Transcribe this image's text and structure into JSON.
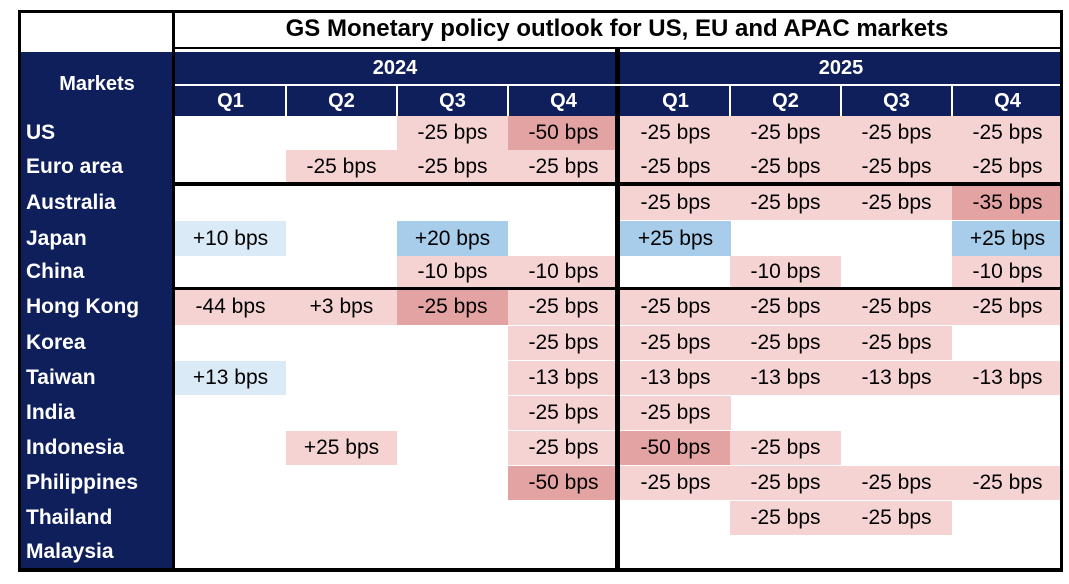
{
  "chart_data": {
    "type": "table",
    "title": "GS Monetary policy outlook for US, EU and APAC markets",
    "row_header": "Markets",
    "years": [
      {
        "label": "2024",
        "quarters": [
          "Q1",
          "Q2",
          "Q3",
          "Q4"
        ]
      },
      {
        "label": "2025",
        "quarters": [
          "Q1",
          "Q2",
          "Q3",
          "Q4"
        ]
      }
    ],
    "colors": {
      "navy": "#0f1f5c",
      "cut_light": "#f5d3d3",
      "cut_strong": "#e4a3a3",
      "hike_light": "#dbeaf7",
      "hike_strong": "#a7cdea"
    },
    "rows": [
      {
        "market": "US",
        "cells": [
          {
            "text": "",
            "shade": "none"
          },
          {
            "text": "",
            "shade": "none"
          },
          {
            "text": "-25 bps",
            "shade": "cut_light"
          },
          {
            "text": "-50 bps",
            "shade": "cut_strong"
          },
          {
            "text": "-25 bps",
            "shade": "cut_light"
          },
          {
            "text": "-25 bps",
            "shade": "cut_light"
          },
          {
            "text": "-25 bps",
            "shade": "cut_light"
          },
          {
            "text": "-25 bps",
            "shade": "cut_light"
          }
        ]
      },
      {
        "market": "Euro area",
        "cells": [
          {
            "text": "",
            "shade": "none"
          },
          {
            "text": "-25 bps",
            "shade": "cut_light"
          },
          {
            "text": "-25 bps",
            "shade": "cut_light"
          },
          {
            "text": "-25 bps",
            "shade": "cut_light"
          },
          {
            "text": "-25 bps",
            "shade": "cut_light"
          },
          {
            "text": "-25 bps",
            "shade": "cut_light"
          },
          {
            "text": "-25 bps",
            "shade": "cut_light"
          },
          {
            "text": "-25 bps",
            "shade": "cut_light"
          }
        ]
      },
      {
        "market": "Australia",
        "cells": [
          {
            "text": "",
            "shade": "none"
          },
          {
            "text": "",
            "shade": "none"
          },
          {
            "text": "",
            "shade": "none"
          },
          {
            "text": "",
            "shade": "none"
          },
          {
            "text": "-25 bps",
            "shade": "cut_light"
          },
          {
            "text": "-25 bps",
            "shade": "cut_light"
          },
          {
            "text": "-25 bps",
            "shade": "cut_light"
          },
          {
            "text": "-35 bps",
            "shade": "cut_strong"
          }
        ]
      },
      {
        "market": "Japan",
        "cells": [
          {
            "text": "+10 bps",
            "shade": "hike_light"
          },
          {
            "text": "",
            "shade": "none"
          },
          {
            "text": "+20 bps",
            "shade": "hike_strong"
          },
          {
            "text": "",
            "shade": "none"
          },
          {
            "text": "+25 bps",
            "shade": "hike_strong"
          },
          {
            "text": "",
            "shade": "none"
          },
          {
            "text": "",
            "shade": "none"
          },
          {
            "text": "+25 bps",
            "shade": "hike_strong"
          }
        ]
      },
      {
        "market": "China",
        "cells": [
          {
            "text": "",
            "shade": "none"
          },
          {
            "text": "",
            "shade": "none"
          },
          {
            "text": "-10 bps",
            "shade": "cut_light"
          },
          {
            "text": "-10 bps",
            "shade": "cut_light"
          },
          {
            "text": "",
            "shade": "none"
          },
          {
            "text": "-10 bps",
            "shade": "cut_light"
          },
          {
            "text": "",
            "shade": "none"
          },
          {
            "text": "-10 bps",
            "shade": "cut_light"
          }
        ]
      },
      {
        "market": "Hong Kong",
        "cells": [
          {
            "text": "-44 bps",
            "shade": "cut_light"
          },
          {
            "text": "+3 bps",
            "shade": "cut_light"
          },
          {
            "text": "-25 bps",
            "shade": "cut_strong"
          },
          {
            "text": "-25 bps",
            "shade": "cut_light"
          },
          {
            "text": "-25 bps",
            "shade": "cut_light"
          },
          {
            "text": "-25 bps",
            "shade": "cut_light"
          },
          {
            "text": "-25 bps",
            "shade": "cut_light"
          },
          {
            "text": "-25 bps",
            "shade": "cut_light"
          }
        ]
      },
      {
        "market": "Korea",
        "cells": [
          {
            "text": "",
            "shade": "none"
          },
          {
            "text": "",
            "shade": "none"
          },
          {
            "text": "",
            "shade": "none"
          },
          {
            "text": "-25 bps",
            "shade": "cut_light"
          },
          {
            "text": "-25 bps",
            "shade": "cut_light"
          },
          {
            "text": "-25 bps",
            "shade": "cut_light"
          },
          {
            "text": "-25 bps",
            "shade": "cut_light"
          },
          {
            "text": "",
            "shade": "none"
          }
        ]
      },
      {
        "market": "Taiwan",
        "cells": [
          {
            "text": "+13 bps",
            "shade": "hike_light"
          },
          {
            "text": "",
            "shade": "none"
          },
          {
            "text": "",
            "shade": "none"
          },
          {
            "text": "-13 bps",
            "shade": "cut_light"
          },
          {
            "text": "-13 bps",
            "shade": "cut_light"
          },
          {
            "text": "-13 bps",
            "shade": "cut_light"
          },
          {
            "text": "-13 bps",
            "shade": "cut_light"
          },
          {
            "text": "-13 bps",
            "shade": "cut_light"
          }
        ]
      },
      {
        "market": "India",
        "cells": [
          {
            "text": "",
            "shade": "none"
          },
          {
            "text": "",
            "shade": "none"
          },
          {
            "text": "",
            "shade": "none"
          },
          {
            "text": "-25 bps",
            "shade": "cut_light"
          },
          {
            "text": "-25 bps",
            "shade": "cut_light"
          },
          {
            "text": "",
            "shade": "none"
          },
          {
            "text": "",
            "shade": "none"
          },
          {
            "text": "",
            "shade": "none"
          }
        ]
      },
      {
        "market": "Indonesia",
        "cells": [
          {
            "text": "",
            "shade": "none"
          },
          {
            "text": "+25 bps",
            "shade": "cut_light"
          },
          {
            "text": "",
            "shade": "none"
          },
          {
            "text": "-25 bps",
            "shade": "cut_light"
          },
          {
            "text": "-50 bps",
            "shade": "cut_strong"
          },
          {
            "text": "-25 bps",
            "shade": "cut_light"
          },
          {
            "text": "",
            "shade": "none"
          },
          {
            "text": "",
            "shade": "none"
          }
        ]
      },
      {
        "market": "Philippines",
        "cells": [
          {
            "text": "",
            "shade": "none"
          },
          {
            "text": "",
            "shade": "none"
          },
          {
            "text": "",
            "shade": "none"
          },
          {
            "text": "-50 bps",
            "shade": "cut_strong"
          },
          {
            "text": "-25 bps",
            "shade": "cut_light"
          },
          {
            "text": "-25 bps",
            "shade": "cut_light"
          },
          {
            "text": "-25 bps",
            "shade": "cut_light"
          },
          {
            "text": "-25 bps",
            "shade": "cut_light"
          }
        ]
      },
      {
        "market": "Thailand",
        "cells": [
          {
            "text": "",
            "shade": "none"
          },
          {
            "text": "",
            "shade": "none"
          },
          {
            "text": "",
            "shade": "none"
          },
          {
            "text": "",
            "shade": "none"
          },
          {
            "text": "",
            "shade": "none"
          },
          {
            "text": "-25 bps",
            "shade": "cut_light"
          },
          {
            "text": "-25 bps",
            "shade": "cut_light"
          },
          {
            "text": "",
            "shade": "none"
          }
        ]
      },
      {
        "market": "Malaysia",
        "cells": [
          {
            "text": "",
            "shade": "none"
          },
          {
            "text": "",
            "shade": "none"
          },
          {
            "text": "",
            "shade": "none"
          },
          {
            "text": "",
            "shade": "none"
          },
          {
            "text": "",
            "shade": "none"
          },
          {
            "text": "",
            "shade": "none"
          },
          {
            "text": "",
            "shade": "none"
          },
          {
            "text": "",
            "shade": "none"
          }
        ]
      }
    ]
  }
}
